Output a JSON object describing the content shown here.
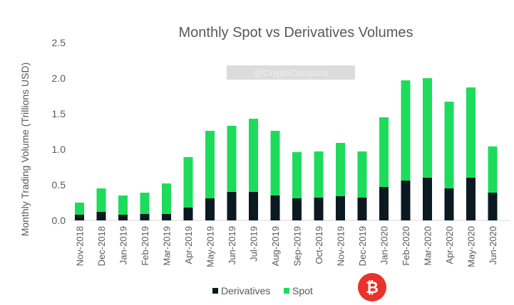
{
  "chart_data": {
    "type": "bar",
    "stacked": true,
    "title": "Monthly Spot vs Derivatives Volumes",
    "xlabel": "",
    "ylabel": "Monthly Trading Volume (Trillions USD)",
    "ylim": [
      0,
      2.5
    ],
    "yticks": [
      "0.0",
      "0.5",
      "1.0",
      "1.5",
      "2.0",
      "2.5"
    ],
    "grid": false,
    "legend_position": "bottom",
    "categories": [
      "Nov-2018",
      "Dec-2018",
      "Jan-2019",
      "Feb-2019",
      "Mar-2019",
      "Apr-2019",
      "May-2019",
      "Jun-2019",
      "Jul-2019",
      "Aug-2019",
      "Sep-2019",
      "Oct-2019",
      "Nov-2019",
      "Dec-2019",
      "Jan-2020",
      "Feb-2020",
      "Mar-2020",
      "Apr-2020",
      "May-2020",
      "Jun-2020"
    ],
    "series": [
      {
        "name": "Derivatives",
        "color": "#0b1a22",
        "values": [
          0.08,
          0.12,
          0.08,
          0.09,
          0.09,
          0.18,
          0.31,
          0.4,
          0.4,
          0.35,
          0.31,
          0.32,
          0.34,
          0.32,
          0.47,
          0.56,
          0.6,
          0.45,
          0.6,
          0.39
        ]
      },
      {
        "name": "Spot",
        "color": "#1ddc5c",
        "values": [
          0.17,
          0.33,
          0.27,
          0.3,
          0.43,
          0.71,
          0.95,
          0.93,
          1.03,
          0.91,
          0.65,
          0.65,
          0.75,
          0.65,
          0.98,
          1.41,
          1.4,
          1.22,
          1.27,
          0.65
        ]
      }
    ]
  },
  "watermark": "@CryptoCompare"
}
